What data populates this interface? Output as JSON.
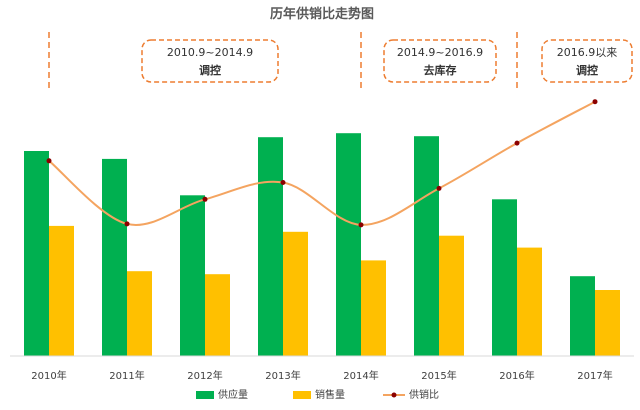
{
  "chart_data": {
    "type": "bar",
    "title": "历年供销比走势图",
    "categories": [
      "2010年",
      "2011年",
      "2012年",
      "2013年",
      "2014年",
      "2015年",
      "2016年",
      "2017年"
    ],
    "series": [
      {
        "name": "供应量",
        "type": "bar",
        "color": "#00b050",
        "values": [
          208,
          200,
          163,
          222,
          226,
          223,
          159,
          81
        ]
      },
      {
        "name": "销售量",
        "type": "bar",
        "color": "#ffc000",
        "values": [
          132,
          86,
          83,
          126,
          97,
          122,
          110,
          67
        ]
      },
      {
        "name": "供销比",
        "type": "line",
        "color": "#f4a460",
        "marker_color": "#8b0000",
        "values": [
          198,
          134,
          159,
          176,
          133,
          170,
          216,
          258
        ]
      }
    ],
    "ylim": [
      0,
      280
    ],
    "grid": false,
    "legend": "bottom",
    "annotations": [
      {
        "range": "2010.9~2014.9",
        "label": "调控"
      },
      {
        "range": "2014.9~2016.9",
        "label": "去库存"
      },
      {
        "range": "2016.9以来",
        "label": "调控"
      }
    ],
    "dividers_after_category": [
      0,
      4,
      6
    ]
  }
}
